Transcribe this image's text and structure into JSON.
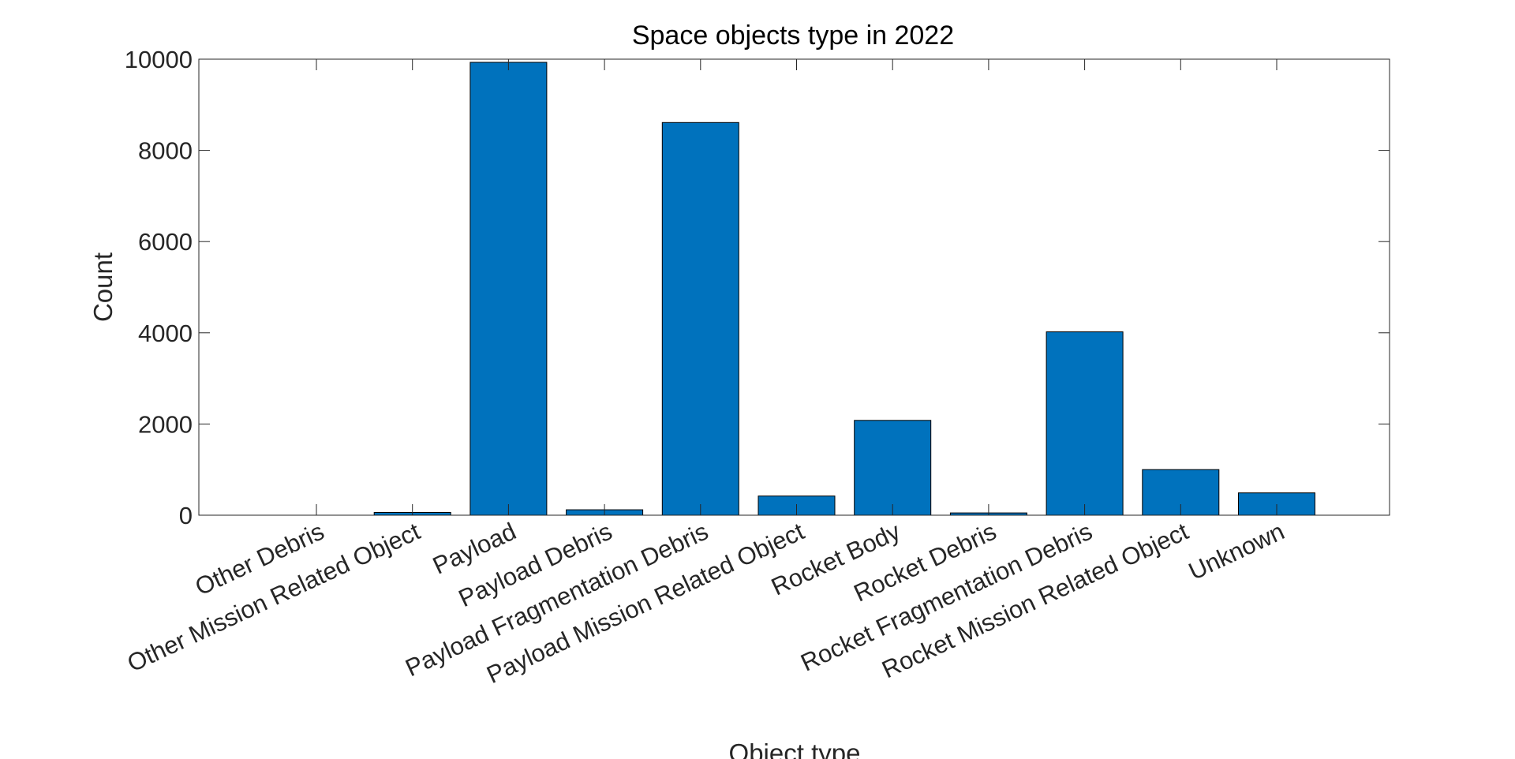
{
  "chart_data": {
    "type": "bar",
    "title": "Space objects type in 2022",
    "xlabel": "Object type",
    "ylabel": "Count",
    "ylim": [
      0,
      10000
    ],
    "yticks": [
      "0",
      "2000",
      "4000",
      "6000",
      "8000",
      "10000"
    ],
    "categories": [
      "Other Debris",
      "Other Mission Related Object",
      "Payload",
      "Payload Debris",
      "Payload Fragmentation Debris",
      "Payload Mission Related Object",
      "Rocket Body",
      "Rocket Debris",
      "Rocket Fragmentation Debris",
      "Rocket Mission Related Object",
      "Unknown"
    ],
    "values": [
      0,
      60,
      9930,
      120,
      8610,
      420,
      2080,
      50,
      4020,
      1000,
      490
    ],
    "bar_color": "#0072BD",
    "grid": false,
    "box": true
  }
}
